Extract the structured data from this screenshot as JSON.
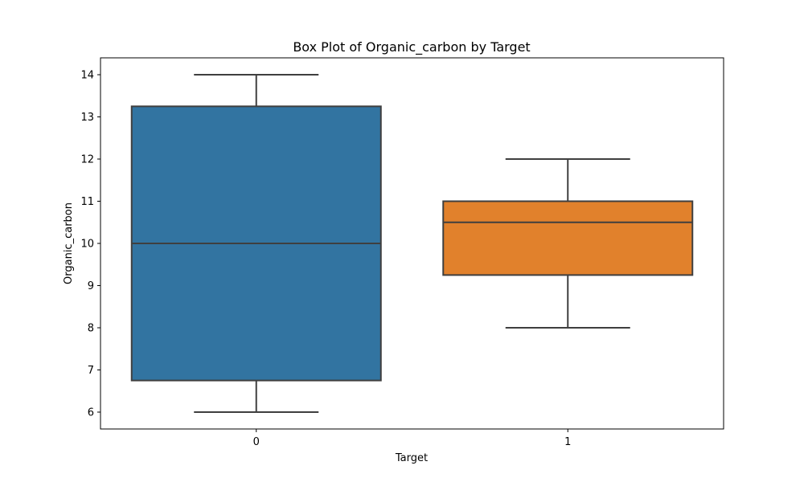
{
  "chart_data": {
    "type": "box",
    "title": "Box Plot of Organic_carbon by Target",
    "xlabel": "Target",
    "ylabel": "Organic_carbon",
    "categories": [
      "0",
      "1"
    ],
    "boxes": [
      {
        "category": "0",
        "whisker_low": 6,
        "q1": 6.75,
        "median": 10,
        "q3": 13.25,
        "whisker_high": 14,
        "color": "#3274a1"
      },
      {
        "category": "1",
        "whisker_low": 8,
        "q1": 9.25,
        "median": 10.5,
        "q3": 11,
        "whisker_high": 12,
        "color": "#e1812c"
      }
    ],
    "yticks": [
      "6",
      "7",
      "8",
      "9",
      "10",
      "11",
      "12",
      "13",
      "14"
    ],
    "ylim": [
      5.6,
      14.4
    ],
    "grid": false,
    "line_color": "#3f3f3f"
  }
}
